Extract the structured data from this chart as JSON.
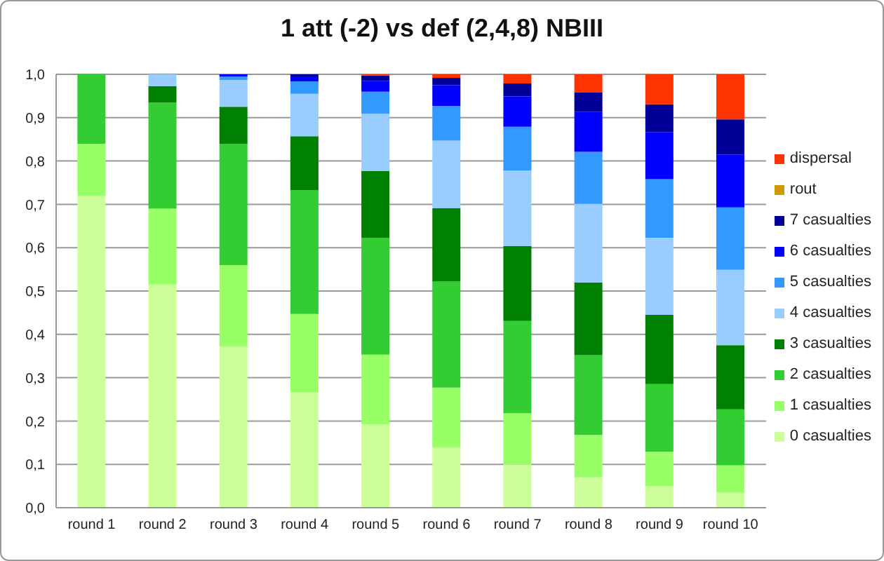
{
  "chart_data": {
    "type": "bar",
    "title": "1 att (-2) vs def (2,4,8) NBIII",
    "stacked": true,
    "categories": [
      "round 1",
      "round 2",
      "round 3",
      "round 4",
      "round 5",
      "round 6",
      "round 7",
      "round 8",
      "round 9",
      "round 10"
    ],
    "series": [
      {
        "name": "0 casualties",
        "color": "#ccff99",
        "values": [
          0.72,
          0.515,
          0.372,
          0.267,
          0.192,
          0.139,
          0.1,
          0.07,
          0.05,
          0.035
        ]
      },
      {
        "name": "1 casualties",
        "color": "#99ff66",
        "values": [
          0.12,
          0.175,
          0.188,
          0.18,
          0.161,
          0.138,
          0.118,
          0.098,
          0.079,
          0.063
        ]
      },
      {
        "name": "2 casualties",
        "color": "#33cc33",
        "values": [
          0.16,
          0.245,
          0.28,
          0.286,
          0.27,
          0.245,
          0.213,
          0.184,
          0.156,
          0.129
        ]
      },
      {
        "name": "3 casualties",
        "color": "#008000",
        "values": [
          0,
          0.038,
          0.085,
          0.124,
          0.154,
          0.169,
          0.173,
          0.168,
          0.16,
          0.148
        ]
      },
      {
        "name": "4 casualties",
        "color": "#99ccff",
        "values": [
          0,
          0.027,
          0.062,
          0.098,
          0.132,
          0.156,
          0.174,
          0.181,
          0.178,
          0.174
        ]
      },
      {
        "name": "5 casualties",
        "color": "#3399ff",
        "values": [
          0,
          0,
          0.008,
          0.029,
          0.051,
          0.08,
          0.101,
          0.12,
          0.135,
          0.144
        ]
      },
      {
        "name": "6 casualties",
        "color": "#0000ff",
        "values": [
          0,
          0,
          0.005,
          0.011,
          0.025,
          0.048,
          0.07,
          0.092,
          0.109,
          0.122
        ]
      },
      {
        "name": "7 casualties",
        "color": "#000099",
        "values": [
          0,
          0,
          0,
          0.005,
          0.012,
          0.017,
          0.03,
          0.045,
          0.064,
          0.081
        ]
      },
      {
        "name": "rout",
        "color": "#cc9900",
        "values": [
          0,
          0,
          0,
          0,
          0,
          0,
          0,
          0,
          0,
          0
        ]
      },
      {
        "name": "dispersal",
        "color": "#ff3300",
        "values": [
          0,
          0,
          0,
          0,
          0.003,
          0.008,
          0.021,
          0.042,
          0.069,
          0.104
        ]
      }
    ],
    "ylim": [
      0,
      1
    ],
    "yticks": [
      {
        "value": 0,
        "label": "0,0"
      },
      {
        "value": 0.1,
        "label": "0,1"
      },
      {
        "value": 0.2,
        "label": "0,2"
      },
      {
        "value": 0.3,
        "label": "0,3"
      },
      {
        "value": 0.4,
        "label": "0,4"
      },
      {
        "value": 0.5,
        "label": "0,5"
      },
      {
        "value": 0.6,
        "label": "0,6"
      },
      {
        "value": 0.7,
        "label": "0,7"
      },
      {
        "value": 0.8,
        "label": "0,8"
      },
      {
        "value": 0.9,
        "label": "0,9"
      },
      {
        "value": 1,
        "label": "1,0"
      }
    ],
    "grid": "y",
    "legend": "right"
  }
}
